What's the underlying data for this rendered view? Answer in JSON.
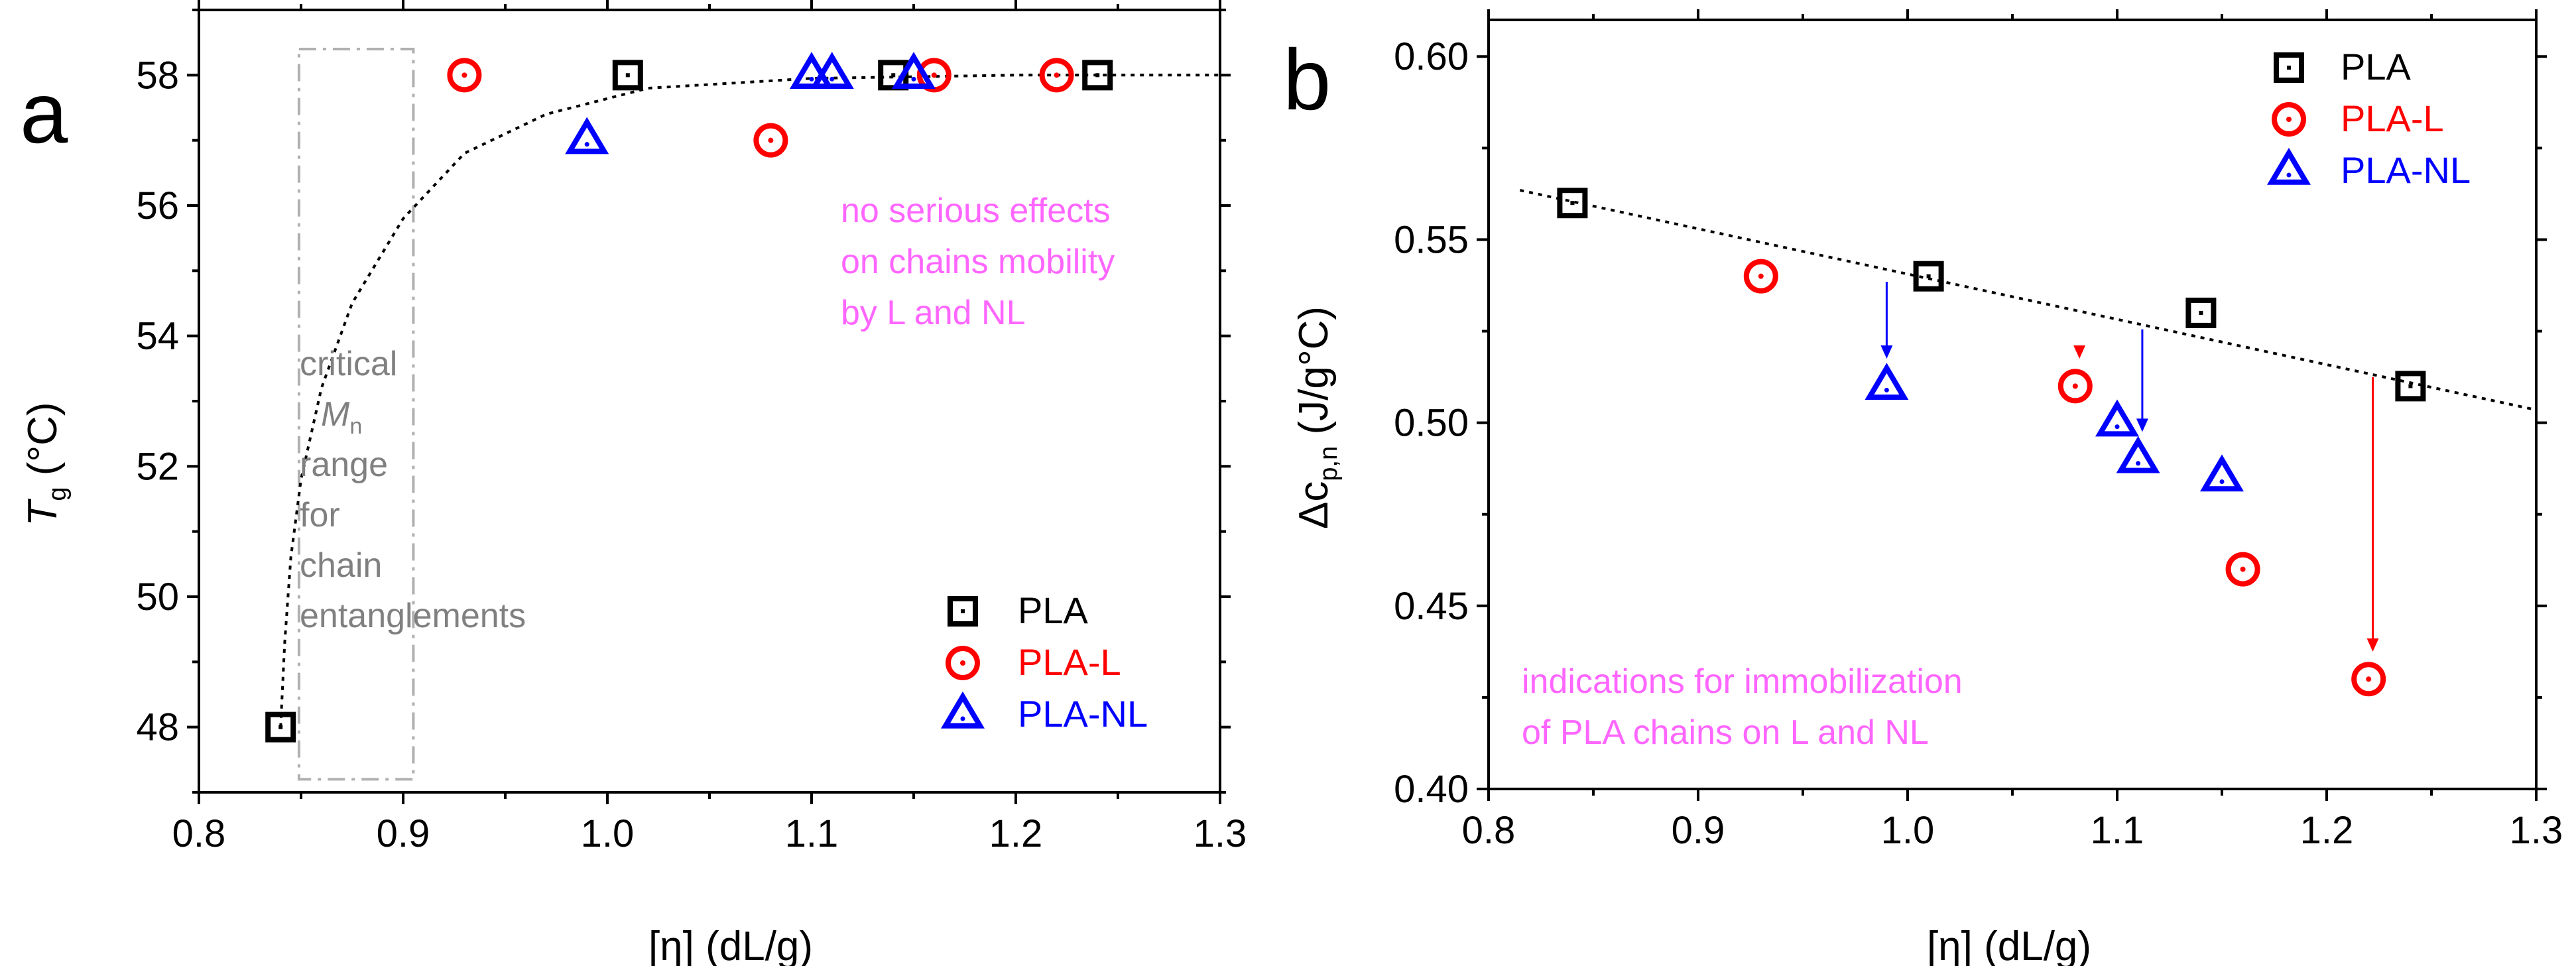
{
  "chart_data": [
    {
      "panel": "a",
      "type": "scatter",
      "xlabel": "[η] (dL/g)",
      "ylabel": "T",
      "ylabel_sub": "g",
      "ylabel_unit": " (°C)",
      "xlim": [
        0.8,
        1.3
      ],
      "ylim": [
        47,
        59
      ],
      "xticks": [
        0.8,
        0.9,
        1.0,
        1.1,
        1.2,
        1.3
      ],
      "xtick_labels": [
        "0.8",
        "0.9",
        "1.0",
        "1.1",
        "1.2",
        "1.3"
      ],
      "yticks": [
        48,
        50,
        52,
        54,
        56,
        58
      ],
      "ytick_labels": [
        "48",
        "50",
        "52",
        "54",
        "56",
        "58"
      ],
      "legend_position": "bottom-right",
      "series": [
        {
          "name": "PLA",
          "marker": "square",
          "color": "#000000",
          "points": [
            [
              0.84,
              48
            ],
            [
              1.01,
              58
            ],
            [
              1.14,
              58
            ],
            [
              1.24,
              58
            ]
          ]
        },
        {
          "name": "PLA-L",
          "marker": "circle",
          "color": "#ff0000",
          "points": [
            [
              0.93,
              58
            ],
            [
              1.08,
              57
            ],
            [
              1.16,
              58
            ],
            [
              1.22,
              58
            ]
          ]
        },
        {
          "name": "PLA-NL",
          "marker": "triangle",
          "color": "#0000ff",
          "points": [
            [
              0.99,
              57
            ],
            [
              1.1,
              58
            ],
            [
              1.11,
              58
            ],
            [
              1.15,
              58
            ]
          ]
        }
      ],
      "fit": {
        "style": "dotted",
        "color": "#000000",
        "points": [
          [
            0.84,
            48
          ],
          [
            0.842,
            49.3
          ],
          [
            0.845,
            50.6
          ],
          [
            0.85,
            51.8
          ],
          [
            0.86,
            53.2
          ],
          [
            0.875,
            54.5
          ],
          [
            0.9,
            55.8
          ],
          [
            0.93,
            56.8
          ],
          [
            0.97,
            57.4
          ],
          [
            1.02,
            57.8
          ],
          [
            1.1,
            57.95
          ],
          [
            1.2,
            58.0
          ],
          [
            1.3,
            58.0
          ]
        ]
      },
      "region": {
        "x_range": [
          0.849,
          0.905
        ],
        "y_range": [
          47.2,
          58.4
        ],
        "color": "#b0b0b0",
        "style": "dash-dot"
      },
      "annotations": {
        "mobility": [
          "no serious effects",
          "on chains mobility",
          "by L and NL"
        ],
        "critical": {
          "line1": "critical",
          "line2_symbol": "M",
          "line2_sub": "n",
          "rest": [
            "range",
            "for",
            "chain",
            "entanglements"
          ]
        }
      }
    },
    {
      "panel": "b",
      "type": "scatter",
      "xlabel": "[η] (dL/g)",
      "ylabel": "Δc",
      "ylabel_sub": "p,n",
      "ylabel_unit": " (J/g°C)",
      "xlim": [
        0.8,
        1.3
      ],
      "ylim": [
        0.4,
        0.61
      ],
      "xticks": [
        0.8,
        0.9,
        1.0,
        1.1,
        1.2,
        1.3
      ],
      "xtick_labels": [
        "0.8",
        "0.9",
        "1.0",
        "1.1",
        "1.2",
        "1.3"
      ],
      "yticks": [
        0.4,
        0.45,
        0.5,
        0.55,
        0.6
      ],
      "ytick_labels": [
        "0.40",
        "0.45",
        "0.50",
        "0.55",
        "0.60"
      ],
      "legend_position": "top-right",
      "series": [
        {
          "name": "PLA",
          "marker": "square",
          "color": "#000000",
          "points": [
            [
              0.84,
              0.56
            ],
            [
              1.01,
              0.54
            ],
            [
              1.14,
              0.53
            ],
            [
              1.24,
              0.51
            ]
          ]
        },
        {
          "name": "PLA-L",
          "marker": "circle",
          "color": "#ff0000",
          "points": [
            [
              0.93,
              0.54
            ],
            [
              1.08,
              0.51
            ],
            [
              1.16,
              0.46
            ],
            [
              1.22,
              0.43
            ]
          ]
        },
        {
          "name": "PLA-NL",
          "marker": "triangle",
          "color": "#0000ff",
          "points": [
            [
              0.99,
              0.51
            ],
            [
              1.1,
              0.5
            ],
            [
              1.11,
              0.49
            ],
            [
              1.15,
              0.485
            ]
          ]
        }
      ],
      "fit": {
        "style": "dotted",
        "color": "#000000",
        "points": [
          [
            0.815,
            0.5635
          ],
          [
            1.3,
            0.5035
          ]
        ]
      },
      "arrows": [
        {
          "color": "#0000ff",
          "from": [
            0.99,
            0.5385
          ],
          "to": [
            0.99,
            0.5175
          ]
        },
        {
          "color": "#ff0000",
          "from": [
            1.082,
            0.5185
          ],
          "to": [
            1.082,
            0.5175
          ]
        },
        {
          "color": "#0000ff",
          "from": [
            1.112,
            0.5255
          ],
          "to": [
            1.112,
            0.4975
          ]
        },
        {
          "color": "#ff0000",
          "from": [
            1.222,
            0.5125
          ],
          "to": [
            1.222,
            0.4375
          ]
        }
      ],
      "annotations": {
        "immobilization": [
          "indications for immobilization",
          "of PLA chains on L and NL"
        ]
      }
    }
  ]
}
